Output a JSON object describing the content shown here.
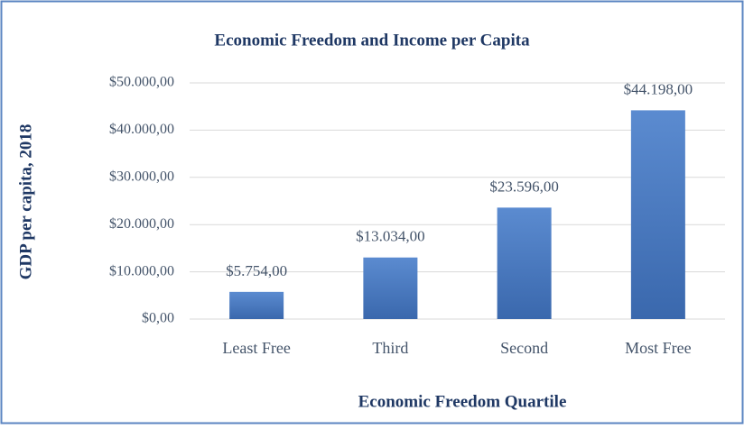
{
  "chart_data": {
    "type": "bar",
    "title": "Economic Freedom and Income per Capita",
    "x_label": "Economic Freedom Quartile",
    "y_label": "GDP per capita, 2018",
    "categories": [
      "Least Free",
      "Third",
      "Second",
      "Most Free"
    ],
    "values": [
      5754,
      13034,
      23596,
      44198
    ],
    "value_labels": [
      "$5.754,00",
      "$13.034,00",
      "$23.596,00",
      "$44.198,00"
    ],
    "color": "#4472c4",
    "ylim": [
      0,
      50000
    ],
    "yticks": [
      {
        "value": 0,
        "label": "$0,00"
      },
      {
        "value": 10000,
        "label": "$10.000,00"
      },
      {
        "value": 20000,
        "label": "$20.000,00"
      },
      {
        "value": 30000,
        "label": "$30.000,00"
      },
      {
        "value": 40000,
        "label": "$40.000,00"
      },
      {
        "value": 50000,
        "label": "$50.000,00"
      }
    ],
    "grid": true
  }
}
